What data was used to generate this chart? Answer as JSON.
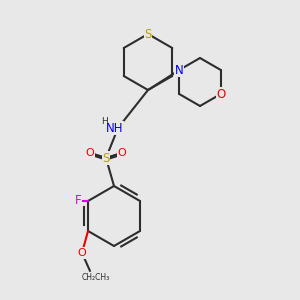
{
  "bg_color": "#e8e8e8",
  "bond_color": "#2d2d2d",
  "bond_width": 1.5,
  "colors": {
    "S": "#b8a000",
    "N": "#0000ee",
    "O": "#ee0000",
    "F": "#dd00dd",
    "C": "#2d2d2d",
    "H": "#2d2d2d"
  },
  "font_size": 7.5,
  "font_size_small": 6.5
}
